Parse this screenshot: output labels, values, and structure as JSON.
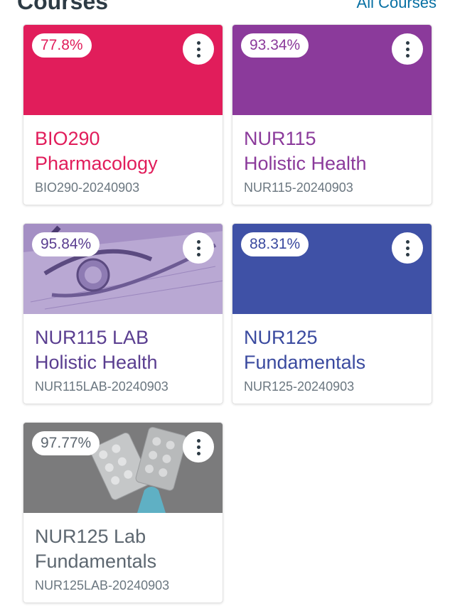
{
  "header": {
    "title": "Courses",
    "all_courses_link": "All Courses"
  },
  "courses": [
    {
      "grade": "77.8%",
      "code": "BIO290",
      "name": "Pharmacology",
      "term": "BIO290-20240903",
      "color": "#e11d5b",
      "hero": "solid"
    },
    {
      "grade": "93.34%",
      "code": "NUR115",
      "name": "Holistic Health",
      "term": "NUR115-20240903",
      "color": "#8b3a9b",
      "hero": "solid"
    },
    {
      "grade": "95.84%",
      "code": "NUR115 LAB",
      "name": "Holistic Health",
      "term": "NUR115LAB-20240903",
      "color": "#5a3e90",
      "hero": "stethoscope-image"
    },
    {
      "grade": "88.31%",
      "code": "NUR125",
      "name": "Fundamentals",
      "term": "NUR125-20240903",
      "color": "#3a4a9f",
      "hero": "solid"
    },
    {
      "grade": "97.77%",
      "code": "NUR125 Lab",
      "name": "Fundamentals",
      "term": "NUR125LAB-20240903",
      "color": "#5d6770",
      "hero": "pills-image"
    }
  ]
}
